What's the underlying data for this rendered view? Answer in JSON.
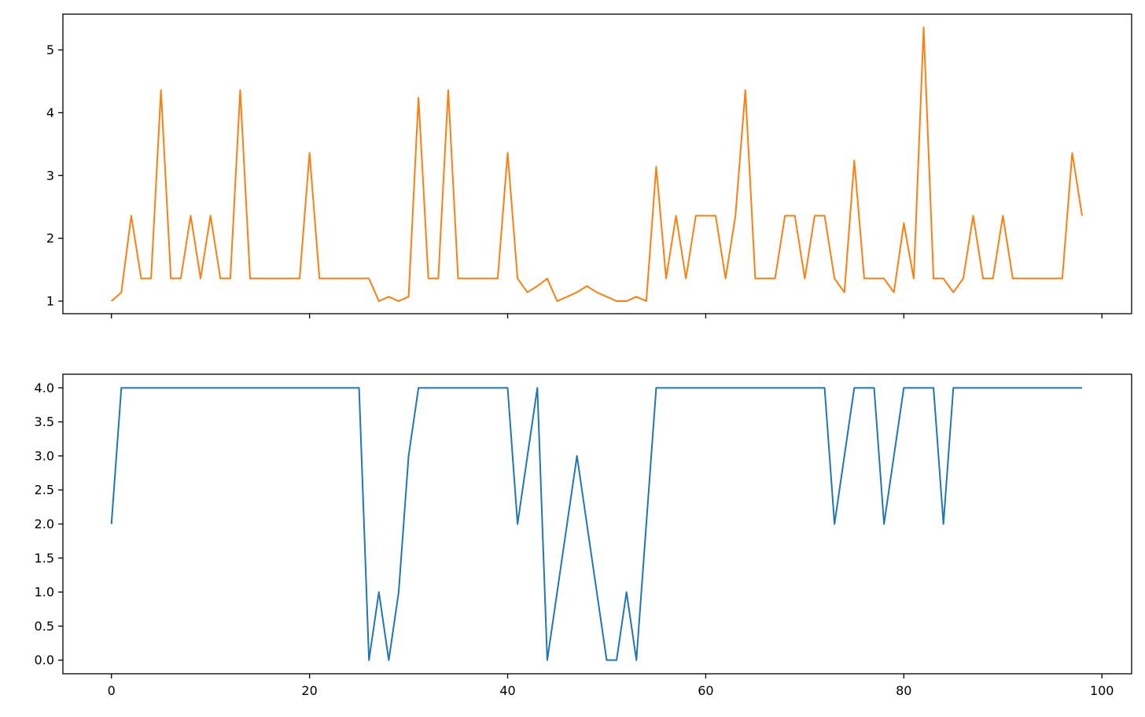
{
  "chart_data": [
    {
      "type": "line",
      "title": "",
      "xlabel": "",
      "ylabel": "",
      "xlim": [
        -4.9,
        103.0
      ],
      "ylim": [
        0.8,
        5.57
      ],
      "xticks": [
        0,
        20,
        40,
        60,
        80,
        100
      ],
      "xtick_labels": [
        "",
        "",
        "",
        "",
        "",
        ""
      ],
      "yticks": [
        1,
        2,
        3,
        4,
        5
      ],
      "ytick_labels": [
        "1",
        "2",
        "3",
        "4",
        "5"
      ],
      "grid": false,
      "legend": "none",
      "series": [
        {
          "color": "#ff7f0e",
          "x": [
            0,
            1,
            2,
            3,
            4,
            5,
            6,
            7,
            8,
            9,
            10,
            11,
            12,
            13,
            14,
            15,
            16,
            17,
            18,
            19,
            20,
            21,
            22,
            23,
            24,
            25,
            26,
            27,
            28,
            29,
            30,
            31,
            32,
            33,
            34,
            35,
            36,
            37,
            38,
            39,
            40,
            41,
            42,
            43,
            44,
            45,
            46,
            47,
            48,
            49,
            50,
            51,
            52,
            53,
            54,
            55,
            56,
            57,
            58,
            59,
            60,
            61,
            62,
            63,
            64,
            65,
            66,
            67,
            68,
            69,
            70,
            71,
            72,
            73,
            74,
            75,
            76,
            77,
            78,
            79,
            80,
            81,
            82,
            83,
            84,
            85,
            86,
            87,
            88,
            89,
            90,
            91,
            92,
            93,
            94,
            95,
            96,
            97,
            98
          ],
          "values": [
            1.0,
            1.14,
            2.36,
            1.36,
            1.36,
            4.36,
            1.36,
            1.36,
            2.36,
            1.36,
            2.36,
            1.36,
            1.36,
            4.36,
            1.36,
            1.36,
            1.36,
            1.36,
            1.36,
            1.36,
            3.36,
            1.36,
            1.36,
            1.36,
            1.36,
            1.36,
            1.36,
            1.0,
            1.07,
            1.0,
            1.07,
            4.24,
            1.36,
            1.36,
            4.36,
            1.36,
            1.36,
            1.36,
            1.36,
            1.36,
            3.36,
            1.36,
            1.14,
            1.24,
            1.36,
            1.0,
            1.07,
            1.14,
            1.24,
            1.14,
            1.07,
            1.0,
            1.0,
            1.07,
            1.0,
            3.14,
            1.36,
            2.36,
            1.36,
            2.36,
            2.36,
            2.36,
            1.36,
            2.36,
            4.36,
            1.36,
            1.36,
            1.36,
            2.36,
            2.36,
            1.36,
            2.36,
            2.36,
            1.36,
            1.14,
            3.24,
            1.36,
            1.36,
            1.36,
            1.14,
            2.24,
            1.36,
            5.36,
            1.36,
            1.36,
            1.14,
            1.36,
            2.36,
            1.36,
            1.36,
            2.36,
            1.36,
            1.36,
            1.36,
            1.36,
            1.36,
            1.36,
            3.36,
            2.36
          ]
        }
      ]
    },
    {
      "type": "line",
      "title": "",
      "xlabel": "",
      "ylabel": "",
      "xlim": [
        -4.9,
        103.0
      ],
      "ylim": [
        -0.2,
        4.2
      ],
      "xticks": [
        0,
        20,
        40,
        60,
        80,
        100
      ],
      "xtick_labels": [
        "0",
        "20",
        "40",
        "60",
        "80",
        "100"
      ],
      "yticks": [
        0.0,
        0.5,
        1.0,
        1.5,
        2.0,
        2.5,
        3.0,
        3.5,
        4.0
      ],
      "ytick_labels": [
        "0.0",
        "0.5",
        "1.0",
        "1.5",
        "2.0",
        "2.5",
        "3.0",
        "3.5",
        "4.0"
      ],
      "grid": false,
      "legend": "none",
      "series": [
        {
          "color": "#1f77b4",
          "x": [
            0,
            1,
            2,
            3,
            4,
            5,
            6,
            7,
            8,
            9,
            10,
            11,
            12,
            13,
            14,
            15,
            16,
            17,
            18,
            19,
            20,
            21,
            22,
            23,
            24,
            25,
            26,
            27,
            28,
            29,
            30,
            31,
            32,
            33,
            34,
            35,
            36,
            37,
            38,
            39,
            40,
            41,
            42,
            43,
            44,
            45,
            46,
            47,
            48,
            49,
            50,
            51,
            52,
            53,
            54,
            55,
            56,
            57,
            58,
            59,
            60,
            61,
            62,
            63,
            64,
            65,
            66,
            67,
            68,
            69,
            70,
            71,
            72,
            73,
            74,
            75,
            76,
            77,
            78,
            79,
            80,
            81,
            82,
            83,
            84,
            85,
            86,
            87,
            88,
            89,
            90,
            91,
            92,
            93,
            94,
            95,
            96,
            97,
            98
          ],
          "values": [
            2,
            4,
            4,
            4,
            4,
            4,
            4,
            4,
            4,
            4,
            4,
            4,
            4,
            4,
            4,
            4,
            4,
            4,
            4,
            4,
            4,
            4,
            4,
            4,
            4,
            4,
            0,
            1,
            0,
            1,
            3,
            4,
            4,
            4,
            4,
            4,
            4,
            4,
            4,
            4,
            4,
            2,
            3,
            4,
            0,
            1,
            2,
            3,
            2,
            1,
            0,
            0,
            1,
            0,
            2,
            4,
            4,
            4,
            4,
            4,
            4,
            4,
            4,
            4,
            4,
            4,
            4,
            4,
            4,
            4,
            4,
            4,
            4,
            2,
            3,
            4,
            4,
            4,
            2,
            3,
            4,
            4,
            4,
            4,
            2,
            4,
            4,
            4,
            4,
            4,
            4,
            4,
            4,
            4,
            4,
            4,
            4,
            4,
            4
          ]
        }
      ]
    }
  ]
}
